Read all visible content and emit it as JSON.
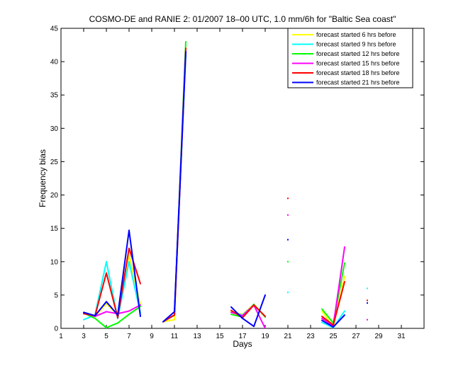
{
  "chart_data": {
    "type": "line",
    "title": "COSMO-DE and RANIE 2: 01/2007 18–00 UTC, 1.0 mm/6h for \"Baltic Sea coast\"",
    "xlabel": "Days",
    "ylabel": "Frequency bias",
    "xlim": [
      1,
      33
    ],
    "ylim": [
      0,
      45
    ],
    "xticks": [
      1,
      3,
      5,
      7,
      9,
      11,
      13,
      15,
      17,
      19,
      21,
      23,
      25,
      27,
      29,
      31
    ],
    "yticks": [
      0,
      5,
      10,
      15,
      20,
      25,
      30,
      35,
      40,
      45
    ],
    "legend_position": "top-right",
    "series": [
      {
        "name": "forecast started 6 hrs before",
        "color": "#ffff00",
        "x": [
          3,
          4,
          5,
          6,
          7,
          8,
          10,
          11,
          12,
          16,
          17,
          18,
          19,
          21,
          24,
          25,
          26,
          28
        ],
        "y": [
          2.3,
          1.8,
          3.7,
          2.0,
          11.0,
          3.5,
          1.0,
          1.3,
          42.0,
          2.5,
          2.1,
          3.6,
          1.8,
          null,
          2.6,
          0.2,
          7.8,
          null
        ]
      },
      {
        "name": "forecast started 9 hrs before",
        "color": "#00ffff",
        "x": [
          3,
          4,
          5,
          6,
          7,
          8,
          10,
          11,
          12,
          16,
          17,
          18,
          19,
          21,
          24,
          25,
          26,
          28
        ],
        "y": [
          1.3,
          2.0,
          10.0,
          1.5,
          10.0,
          2.3,
          1.0,
          2.0,
          41.0,
          2.4,
          2.0,
          3.5,
          1.8,
          5.4,
          0.9,
          0.1,
          2.6,
          6.0
        ]
      },
      {
        "name": "forecast started 12 hrs before",
        "color": "#00ff00",
        "x": [
          3,
          4,
          5,
          6,
          7,
          8,
          10,
          11,
          12,
          16,
          17,
          18,
          19,
          21,
          24,
          25,
          26,
          28
        ],
        "y": [
          2.3,
          1.5,
          0.1,
          0.8,
          2.1,
          3.3,
          1.0,
          2.0,
          43.0,
          2.1,
          1.7,
          3.6,
          1.7,
          10.0,
          2.9,
          0.8,
          9.8,
          null
        ]
      },
      {
        "name": "forecast started 15 hrs before",
        "color": "#ff00ff",
        "x": [
          3,
          4,
          5,
          6,
          7,
          8,
          10,
          11,
          12,
          16,
          17,
          18,
          19,
          21,
          24,
          25,
          26,
          28
        ],
        "y": [
          2.3,
          1.8,
          2.5,
          2.2,
          2.6,
          3.5,
          1.0,
          2.0,
          41.5,
          2.4,
          1.9,
          3.5,
          0.0,
          17.0,
          1.5,
          0.4,
          12.2,
          1.3
        ]
      },
      {
        "name": "forecast started 18 hrs before",
        "color": "#ff0000",
        "x": [
          3,
          4,
          5,
          6,
          7,
          8,
          10,
          11,
          12,
          16,
          17,
          18,
          19,
          21,
          24,
          25,
          26,
          28
        ],
        "y": [
          2.2,
          1.9,
          8.3,
          1.6,
          12.0,
          6.7,
          1.0,
          2.0,
          42.0,
          2.7,
          1.6,
          3.5,
          1.8,
          19.5,
          1.8,
          0.5,
          7.0,
          4.2
        ]
      },
      {
        "name": "forecast started 21 hrs before",
        "color": "#0000ff",
        "x": [
          3,
          4,
          5,
          6,
          7,
          8,
          10,
          11,
          12,
          16,
          17,
          18,
          19,
          21,
          24,
          25,
          26,
          28
        ],
        "y": [
          2.4,
          1.9,
          4.0,
          2.0,
          14.7,
          1.8,
          1.0,
          2.5,
          41.5,
          3.2,
          1.5,
          0.3,
          5.0,
          13.3,
          1.2,
          0.2,
          2.0,
          3.8
        ]
      }
    ]
  }
}
